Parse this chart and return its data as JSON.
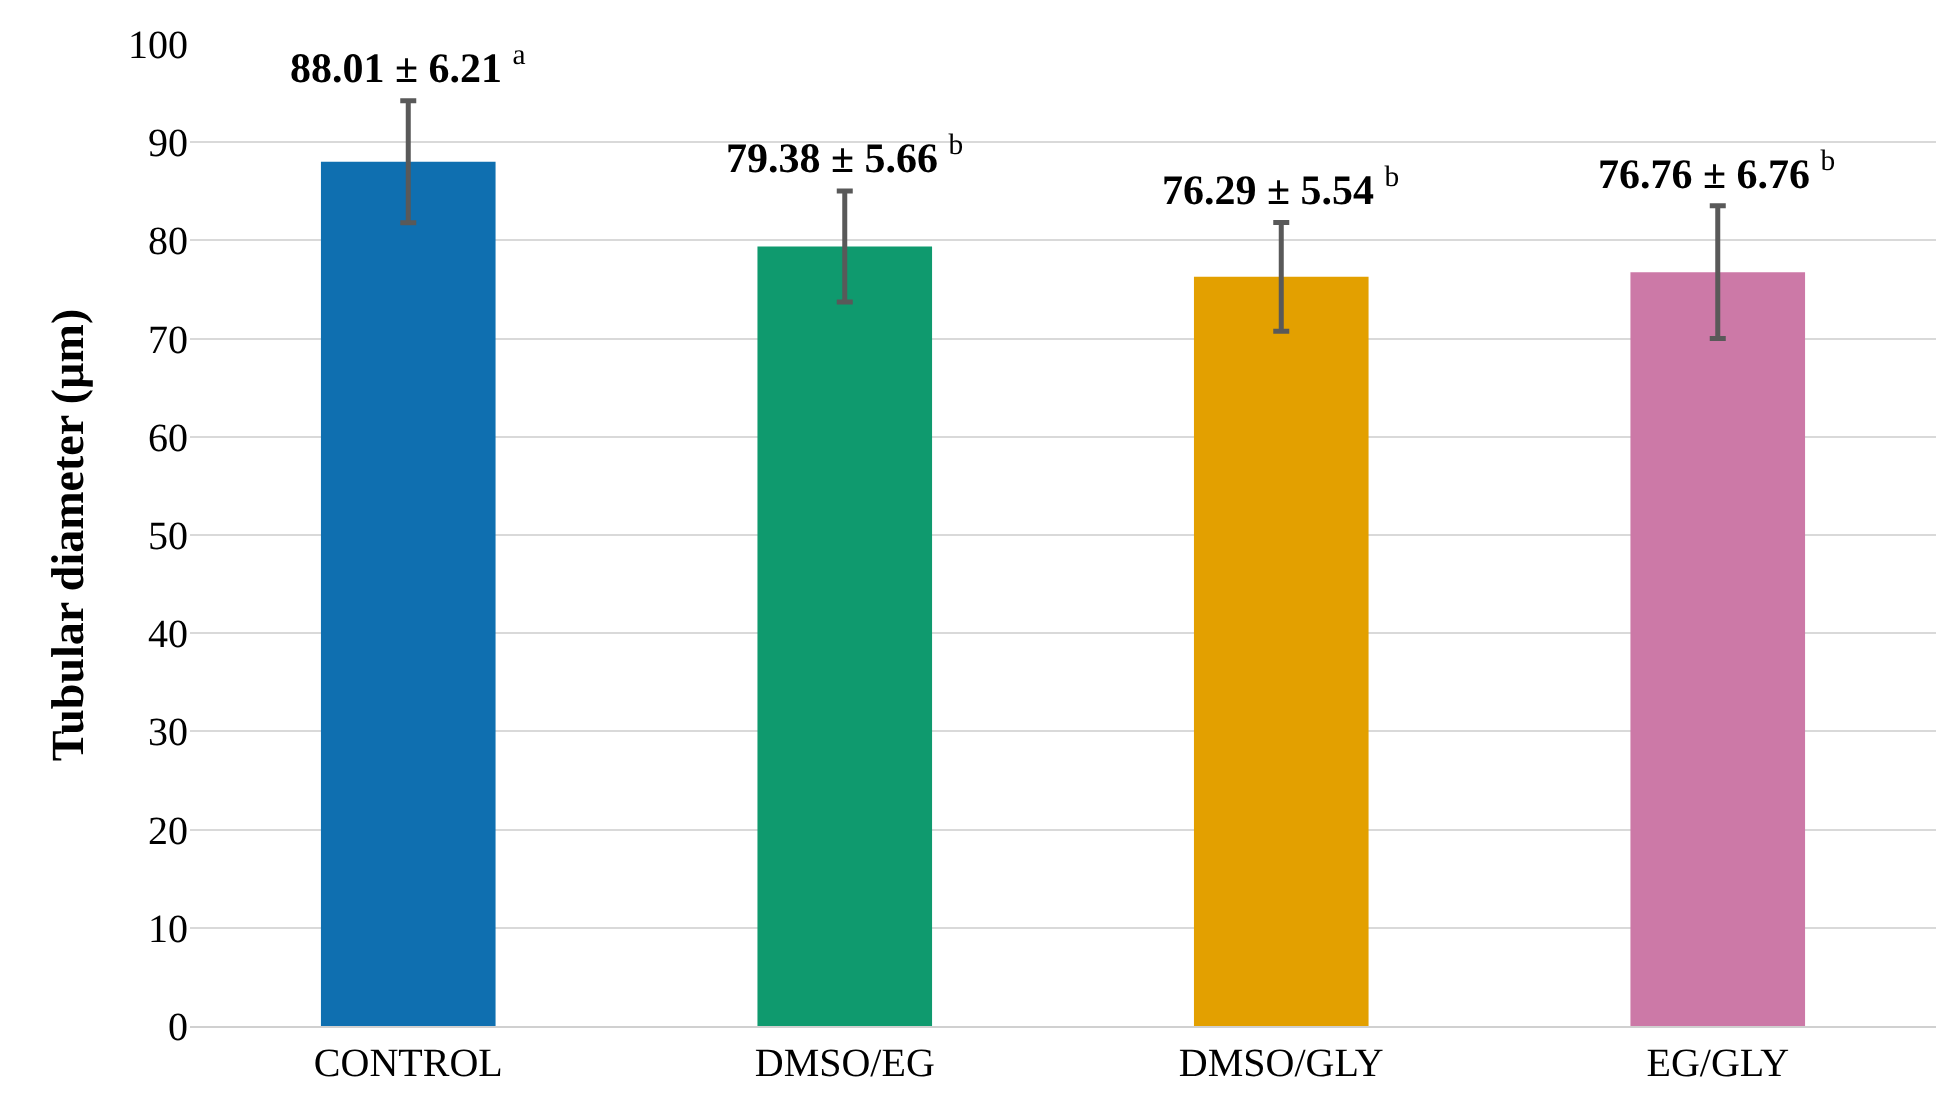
{
  "chart_data": {
    "type": "bar",
    "ylabel": "Tubular diameter (µm)",
    "categories": [
      "CONTROL",
      "DMSO/EG",
      "DMSO/GLY",
      "EG/GLY"
    ],
    "values": [
      88.01,
      79.38,
      76.29,
      76.76
    ],
    "errors": [
      6.21,
      5.66,
      5.54,
      6.76
    ],
    "colors": [
      "#0f6fb0",
      "#0f9a6e",
      "#e3a000",
      "#cc79a7"
    ],
    "value_labels": [
      "88.01 ± 6.21 $^{a}$",
      "79.38 ± 5.66 $^{b}$",
      "76.29 ± 5.54 $^{b}$",
      "76.76 ± 6.76 $^{b}$"
    ],
    "ylim": [
      0,
      100
    ],
    "yticks": [
      0,
      10,
      20,
      30,
      40,
      50,
      60,
      70,
      80,
      90,
      100
    ],
    "grid": "y"
  }
}
